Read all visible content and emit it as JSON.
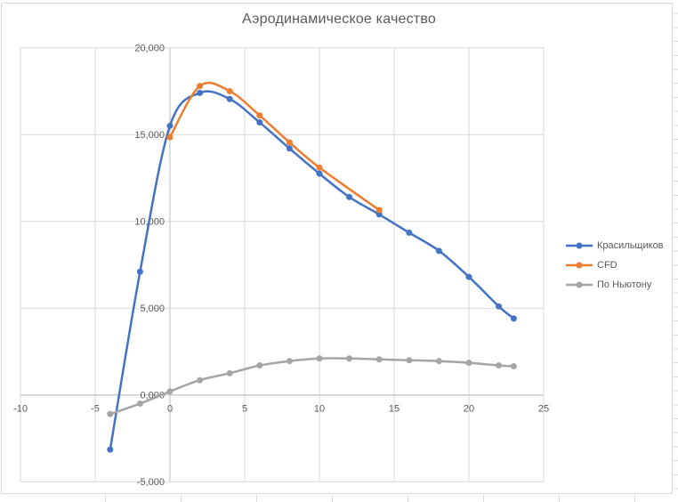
{
  "title": "Аэродинамическое качество",
  "colors": {
    "background": "#FFFFFF",
    "chart_border": "#D9D9D9",
    "gridline": "#D9D9D9",
    "axis_line": "#BFBFBF",
    "tick_text": "#595959",
    "title_text": "#595959",
    "legend_text": "#595959"
  },
  "chart_data": {
    "type": "line",
    "title": "Аэродинамическое качество",
    "xlabel": "",
    "ylabel": "",
    "xlim": [
      -10,
      25
    ],
    "ylim": [
      -5,
      20
    ],
    "grid": true,
    "smooth_lines": true,
    "markers": "circle",
    "legend_position": "right",
    "x_ticks": [
      {
        "value": -10,
        "label": "-10"
      },
      {
        "value": -5,
        "label": "-5"
      },
      {
        "value": 0,
        "label": "0"
      },
      {
        "value": 5,
        "label": "5"
      },
      {
        "value": 10,
        "label": "10"
      },
      {
        "value": 15,
        "label": "15"
      },
      {
        "value": 20,
        "label": "20"
      },
      {
        "value": 25,
        "label": "25"
      }
    ],
    "y_ticks": [
      {
        "value": 20,
        "label": "20,000"
      },
      {
        "value": 15,
        "label": "15,000"
      },
      {
        "value": 10,
        "label": "10,000"
      },
      {
        "value": 5,
        "label": "5,000"
      },
      {
        "value": 0,
        "label": "0,000"
      },
      {
        "value": -5,
        "label": "-5,000"
      }
    ],
    "series": [
      {
        "name": "Красильщиков",
        "color": "#4472C4",
        "points": [
          [
            -4,
            -3.15
          ],
          [
            -2,
            7.1
          ],
          [
            0,
            15.5
          ],
          [
            2,
            17.4
          ],
          [
            4,
            17.05
          ],
          [
            6,
            15.7
          ],
          [
            8,
            14.2
          ],
          [
            10,
            12.75
          ],
          [
            12,
            11.4
          ],
          [
            14,
            10.4
          ],
          [
            16,
            9.35
          ],
          [
            18,
            8.3
          ],
          [
            20,
            6.8
          ],
          [
            22,
            5.1
          ],
          [
            23,
            4.4
          ]
        ]
      },
      {
        "name": "CFD",
        "color": "#ED7D31",
        "points": [
          [
            0,
            14.85
          ],
          [
            2,
            17.8
          ],
          [
            4,
            17.5
          ],
          [
            6,
            16.1
          ],
          [
            8,
            14.55
          ],
          [
            10,
            13.1
          ],
          [
            14,
            10.65
          ]
        ]
      },
      {
        "name": "По Ньютону",
        "color": "#A5A5A5",
        "points": [
          [
            -4,
            -1.1
          ],
          [
            -2,
            -0.5
          ],
          [
            0,
            0.2
          ],
          [
            2,
            0.85
          ],
          [
            4,
            1.25
          ],
          [
            6,
            1.7
          ],
          [
            8,
            1.95
          ],
          [
            10,
            2.1
          ],
          [
            12,
            2.1
          ],
          [
            14,
            2.05
          ],
          [
            16,
            2.0
          ],
          [
            18,
            1.95
          ],
          [
            20,
            1.85
          ],
          [
            22,
            1.7
          ],
          [
            23,
            1.65
          ]
        ]
      }
    ]
  }
}
